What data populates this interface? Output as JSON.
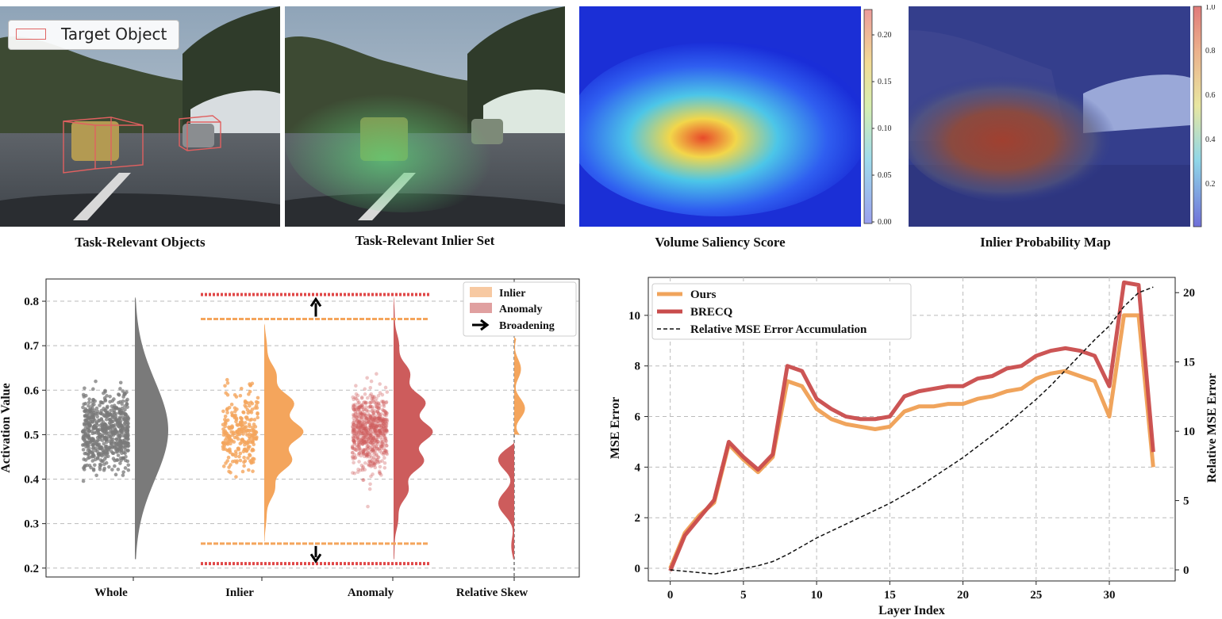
{
  "top_panels": {
    "legend_label": "Target Object",
    "captions": [
      "Task-Relevant Objects",
      "Task-Relevant Inlier Set",
      "Volume Saliency Score",
      "Inlier Probability Map"
    ],
    "saliency_colorbar_ticks": [
      "0.20",
      "0.15",
      "0.10",
      "0.05",
      "0.00"
    ],
    "probability_colorbar_ticks": [
      "1.0",
      "0.8",
      "0.6",
      "0.4",
      "0.2"
    ]
  },
  "chart_data": [
    {
      "type": "violin",
      "ylabel": "Activation Value",
      "xlabel": "",
      "ylim": [
        0.18,
        0.85
      ],
      "yticks": [
        "0.2",
        "0.3",
        "0.4",
        "0.5",
        "0.6",
        "0.7",
        "0.8"
      ],
      "categories": [
        "Whole",
        "Inlier",
        "Anomaly",
        "Relative Skew"
      ],
      "legend": [
        "Inlier",
        "Anomaly",
        "Broadening"
      ],
      "ranges": {
        "Whole": [
          0.22,
          0.81
        ],
        "Inlier": [
          0.26,
          0.75
        ],
        "Anomaly": [
          0.22,
          0.81
        ]
      },
      "inlier_bounds": [
        0.255,
        0.76
      ],
      "anomaly_bounds": [
        0.21,
        0.815
      ],
      "peaks": {
        "Whole": 0.51,
        "Inlier": 0.51,
        "Anomaly": 0.51
      },
      "colors": {
        "whole": "#7a7a7a",
        "inlier": "#f4a55c",
        "anomaly": "#cd5c5c"
      }
    },
    {
      "type": "line",
      "xlabel": "Layer Index",
      "ylabel": "MSE Error",
      "y2label": "Relative MSE Error",
      "xlim": [
        -1.5,
        34.5
      ],
      "ylim": [
        -0.5,
        11.5
      ],
      "y2lim": [
        -0.8,
        21.1
      ],
      "xticks": [
        "0",
        "5",
        "10",
        "15",
        "20",
        "25",
        "30"
      ],
      "yticks": [
        "0",
        "2",
        "4",
        "6",
        "8",
        "10"
      ],
      "y2ticks": [
        "0",
        "5",
        "10",
        "15",
        "20"
      ],
      "x": [
        0,
        1,
        2,
        3,
        4,
        5,
        6,
        7,
        8,
        9,
        10,
        11,
        12,
        13,
        14,
        15,
        16,
        17,
        18,
        19,
        20,
        21,
        22,
        23,
        24,
        25,
        26,
        27,
        28,
        29,
        30,
        31,
        32,
        33
      ],
      "series": [
        {
          "name": "Ours",
          "axis": "left",
          "color": "#f0a45c",
          "values": [
            0,
            1.4,
            2.1,
            2.6,
            4.9,
            4.3,
            3.8,
            4.4,
            7.4,
            7.2,
            6.3,
            5.9,
            5.7,
            5.6,
            5.5,
            5.6,
            6.2,
            6.4,
            6.4,
            6.5,
            6.5,
            6.7,
            6.8,
            7.0,
            7.1,
            7.5,
            7.7,
            7.8,
            7.6,
            7.4,
            6.0,
            10.0,
            10.0,
            4.0
          ]
        },
        {
          "name": "BRECQ",
          "axis": "left",
          "color": "#c94c4c",
          "values": [
            -0.1,
            1.3,
            2.0,
            2.7,
            5.0,
            4.4,
            3.9,
            4.5,
            8.0,
            7.8,
            6.7,
            6.3,
            6.0,
            5.9,
            5.9,
            6.0,
            6.8,
            7.0,
            7.1,
            7.2,
            7.2,
            7.5,
            7.6,
            7.9,
            8.0,
            8.4,
            8.6,
            8.7,
            8.6,
            8.4,
            7.2,
            11.3,
            11.2,
            4.6
          ]
        },
        {
          "name": "Relative MSE Error Accumulation",
          "axis": "right",
          "color": "#111111",
          "values": [
            0,
            -0.1,
            -0.2,
            -0.3,
            -0.1,
            0.1,
            0.3,
            0.6,
            1.1,
            1.7,
            2.3,
            2.8,
            3.3,
            3.8,
            4.3,
            4.8,
            5.4,
            6.0,
            6.7,
            7.4,
            8.1,
            8.9,
            9.7,
            10.5,
            11.4,
            12.3,
            13.3,
            14.4,
            15.5,
            16.6,
            17.6,
            19.0,
            20.0,
            20.4
          ]
        }
      ]
    }
  ]
}
